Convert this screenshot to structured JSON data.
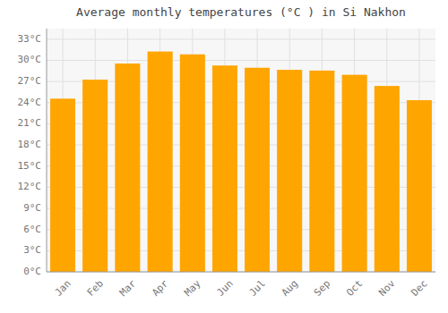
{
  "chart_data": {
    "type": "bar",
    "title": "Average monthly temperatures (°C ) in Si Nakhon",
    "categories": [
      "Jan",
      "Feb",
      "Mar",
      "Apr",
      "May",
      "Jun",
      "Jul",
      "Aug",
      "Sep",
      "Oct",
      "Nov",
      "Dec"
    ],
    "values": [
      24.5,
      27.2,
      29.5,
      31.2,
      30.8,
      29.2,
      28.9,
      28.6,
      28.5,
      27.9,
      26.3,
      24.3
    ],
    "color": "#FFA500",
    "ylim": [
      0,
      34.5
    ],
    "yticks": [
      {
        "value": 0,
        "label": "0°C"
      },
      {
        "value": 3,
        "label": "3°C"
      },
      {
        "value": 6,
        "label": "6°C"
      },
      {
        "value": 9,
        "label": "9°C"
      },
      {
        "value": 12,
        "label": "12°C"
      },
      {
        "value": 15,
        "label": "15°C"
      },
      {
        "value": 18,
        "label": "18°C"
      },
      {
        "value": 21,
        "label": "21°C"
      },
      {
        "value": 24,
        "label": "24°C"
      },
      {
        "value": 27,
        "label": "27°C"
      },
      {
        "value": 30,
        "label": "30°C"
      },
      {
        "value": 33,
        "label": "33°C"
      }
    ],
    "grid": true
  }
}
